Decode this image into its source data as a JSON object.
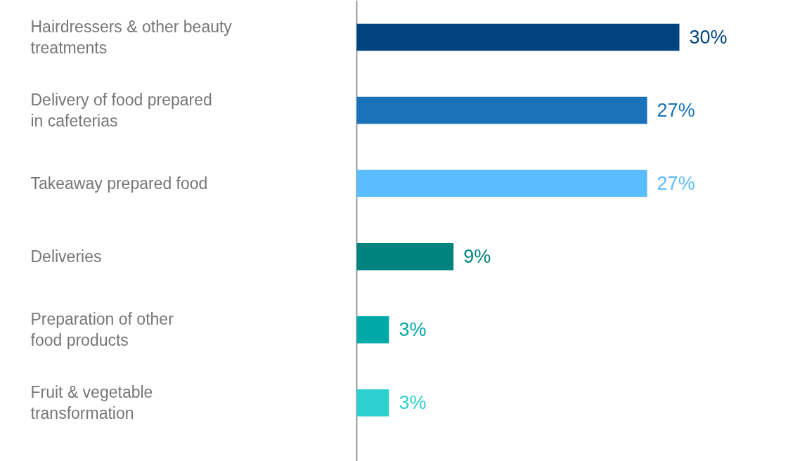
{
  "chart_data": {
    "type": "bar",
    "orientation": "horizontal",
    "categories": [
      "Hairdressers & other beauty\ntreatments",
      "Delivery of food prepared\nin cafeterias",
      "Takeaway prepared food",
      "Deliveries",
      "Preparation of other\nfood products",
      "Fruit & vegetable\ntransformation"
    ],
    "values": [
      30,
      27,
      27,
      9,
      3,
      3
    ],
    "colors": [
      "#00437f",
      "#1a73ba",
      "#5bbcff",
      "#00837f",
      "#00a8a8",
      "#2dcfcf"
    ],
    "value_labels": [
      "30%",
      "27%",
      "27%",
      "9%",
      "3%",
      "3%"
    ],
    "grid": false
  }
}
